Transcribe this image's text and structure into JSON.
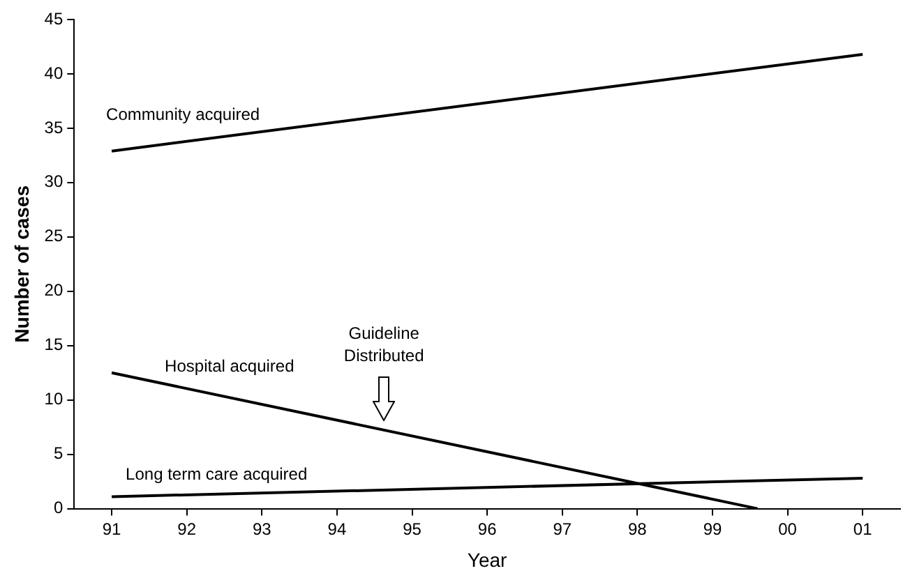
{
  "chart_data": {
    "type": "line",
    "xlabel": "Year",
    "ylabel": "Number of cases",
    "xlim": [
      1990.5,
      2001.5
    ],
    "xticks": [
      {
        "value": 1991,
        "label": "91"
      },
      {
        "value": 1992,
        "label": "92"
      },
      {
        "value": 1993,
        "label": "93"
      },
      {
        "value": 1994,
        "label": "94"
      },
      {
        "value": 1995,
        "label": "95"
      },
      {
        "value": 1996,
        "label": "96"
      },
      {
        "value": 1997,
        "label": "97"
      },
      {
        "value": 1998,
        "label": "98"
      },
      {
        "value": 1999,
        "label": "99"
      },
      {
        "value": 2000,
        "label": "00"
      },
      {
        "value": 2001,
        "label": "01"
      }
    ],
    "ylim": [
      0,
      45
    ],
    "yticks": [
      0,
      5,
      10,
      15,
      20,
      25,
      30,
      35,
      40,
      45
    ],
    "grid": false,
    "legend": false,
    "marker": "none",
    "line_style": "solid",
    "series": [
      {
        "name": "Community acquired",
        "color": "#000000",
        "x": [
          1991,
          2001
        ],
        "values": [
          32.9,
          41.8
        ]
      },
      {
        "name": "Hospital acquired",
        "color": "#000000",
        "x": [
          1991,
          1999.6
        ],
        "values": [
          12.5,
          0
        ]
      },
      {
        "name": "Long term care acquired",
        "color": "#000000",
        "x": [
          1991,
          2001
        ],
        "values": [
          1.1,
          2.8
        ]
      }
    ],
    "annotations": [
      "Guideline Distributed"
    ]
  }
}
